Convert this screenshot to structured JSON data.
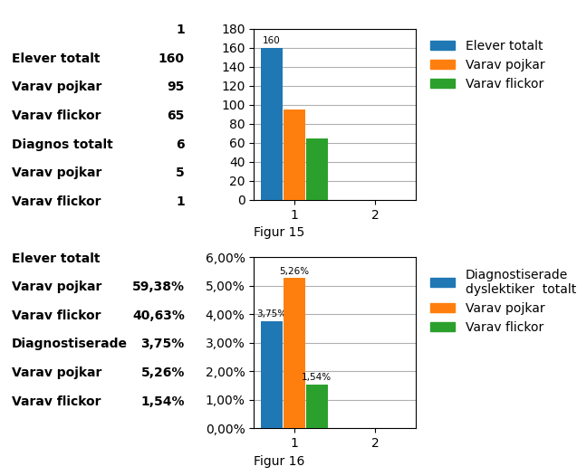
{
  "chart_data": [
    {
      "type": "table",
      "header": "1",
      "rows": [
        [
          "Elever totalt",
          "160"
        ],
        [
          "Varav pojkar",
          "95"
        ],
        [
          "Varav flickor",
          "65"
        ],
        [
          "Diagnos totalt",
          "6"
        ],
        [
          "Varav pojkar",
          "5"
        ],
        [
          "Varav flickor",
          "1"
        ]
      ]
    },
    {
      "type": "table",
      "rows": [
        [
          "Elever totalt",
          null
        ],
        [
          "Varav pojkar",
          "59,38%"
        ],
        [
          "Varav flickor",
          "40,63%"
        ],
        [
          "Diagnostiserade",
          "3,75%"
        ],
        [
          "Varav pojkar",
          "5,26%"
        ],
        [
          "Varav flickor",
          "1,54%"
        ]
      ]
    },
    {
      "type": "bar",
      "xlabel": "Figur 15",
      "categories": [
        "1",
        "2"
      ],
      "series": [
        {
          "name": "Elever totalt",
          "values": [
            160,
            0
          ],
          "value_labels": [
            "160",
            null
          ]
        },
        {
          "name": "Varav pojkar",
          "values": [
            95,
            0
          ]
        },
        {
          "name": "Varav flickor",
          "values": [
            65,
            0
          ]
        }
      ],
      "ylim": [
        0,
        180
      ],
      "yticks": [
        0,
        20,
        40,
        60,
        80,
        100,
        120,
        140,
        160,
        180
      ],
      "grid": true,
      "legend": "right",
      "data_labels": true
    },
    {
      "type": "bar",
      "xlabel": "Figur 16",
      "categories": [
        "1",
        "2"
      ],
      "series": [
        {
          "name": "Diagnostiserade\ndyslektiker  totalt",
          "values": [
            0.0375,
            0
          ],
          "value_labels": [
            "3,75%",
            null
          ]
        },
        {
          "name": "Varav pojkar",
          "values": [
            0.0526,
            0
          ],
          "value_labels": [
            "5,26%",
            null
          ]
        },
        {
          "name": "Varav flickor",
          "values": [
            0.0154,
            0
          ],
          "value_labels": [
            "1,54%",
            null
          ]
        }
      ],
      "ylim": [
        0,
        0.06
      ],
      "yticks": [
        {
          "value": 0.0,
          "label": "0,00%"
        },
        {
          "value": 0.01,
          "label": "1,00%"
        },
        {
          "value": 0.02,
          "label": "2,00%"
        },
        {
          "value": 0.03,
          "label": "3,00%"
        },
        {
          "value": 0.04,
          "label": "4,00%"
        },
        {
          "value": 0.05,
          "label": "5,00%"
        },
        {
          "value": 0.06,
          "label": "6,00%"
        }
      ],
      "grid": true,
      "legend": "right",
      "data_labels": true
    }
  ]
}
